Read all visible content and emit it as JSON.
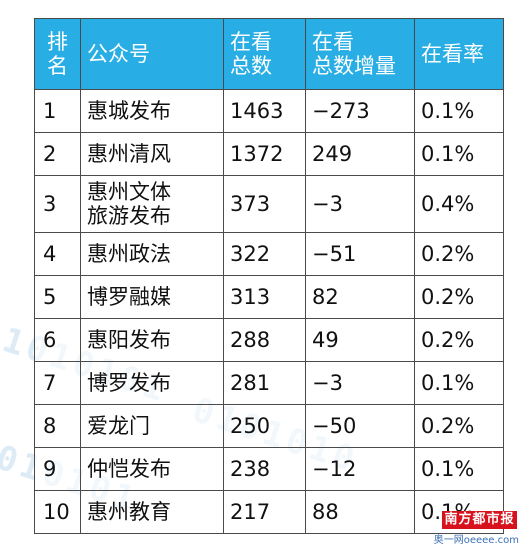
{
  "chart_data": {
    "type": "table",
    "columns": [
      "排名",
      "公众号",
      "在看总数",
      "在看总数增量",
      "在看率"
    ],
    "header": {
      "rank": "排\n名",
      "account": "公众号",
      "total": "在看\n总数",
      "delta": "在看\n总数增量",
      "rate": "在看率"
    },
    "rows": [
      {
        "rank": "1",
        "account": "惠城发布",
        "total": "1463",
        "delta": "−273",
        "rate": "0.1%"
      },
      {
        "rank": "2",
        "account": "惠州清风",
        "total": "1372",
        "delta": "249",
        "rate": "0.1%"
      },
      {
        "rank": "3",
        "account": "惠州文体\n旅游发布",
        "total": "373",
        "delta": "−3",
        "rate": "0.4%"
      },
      {
        "rank": "4",
        "account": "惠州政法",
        "total": "322",
        "delta": "−51",
        "rate": "0.2%"
      },
      {
        "rank": "5",
        "account": "博罗融媒",
        "total": "313",
        "delta": "82",
        "rate": "0.2%"
      },
      {
        "rank": "6",
        "account": "惠阳发布",
        "total": "288",
        "delta": "49",
        "rate": "0.2%"
      },
      {
        "rank": "7",
        "account": "博罗发布",
        "total": "281",
        "delta": "−3",
        "rate": "0.1%"
      },
      {
        "rank": "8",
        "account": "爱龙门",
        "total": "250",
        "delta": "−50",
        "rate": "0.2%"
      },
      {
        "rank": "9",
        "account": "仲恺发布",
        "total": "238",
        "delta": "−12",
        "rate": "0.1%"
      },
      {
        "rank": "10",
        "account": "惠州教育",
        "total": "217",
        "delta": "88",
        "rate": "0.1%"
      }
    ]
  },
  "colors": {
    "header_bg": "#28aee4",
    "header_text": "#ffffff",
    "border": "#4a4a4a",
    "logo_bg": "#d8121d"
  },
  "decoration": {
    "binary_1": "1010101",
    "binary_2": "0101010",
    "binary_3": "1010101"
  },
  "watermark": {
    "logo_text": "南方都市报",
    "sub_text": "奥一网oeeee.com"
  }
}
